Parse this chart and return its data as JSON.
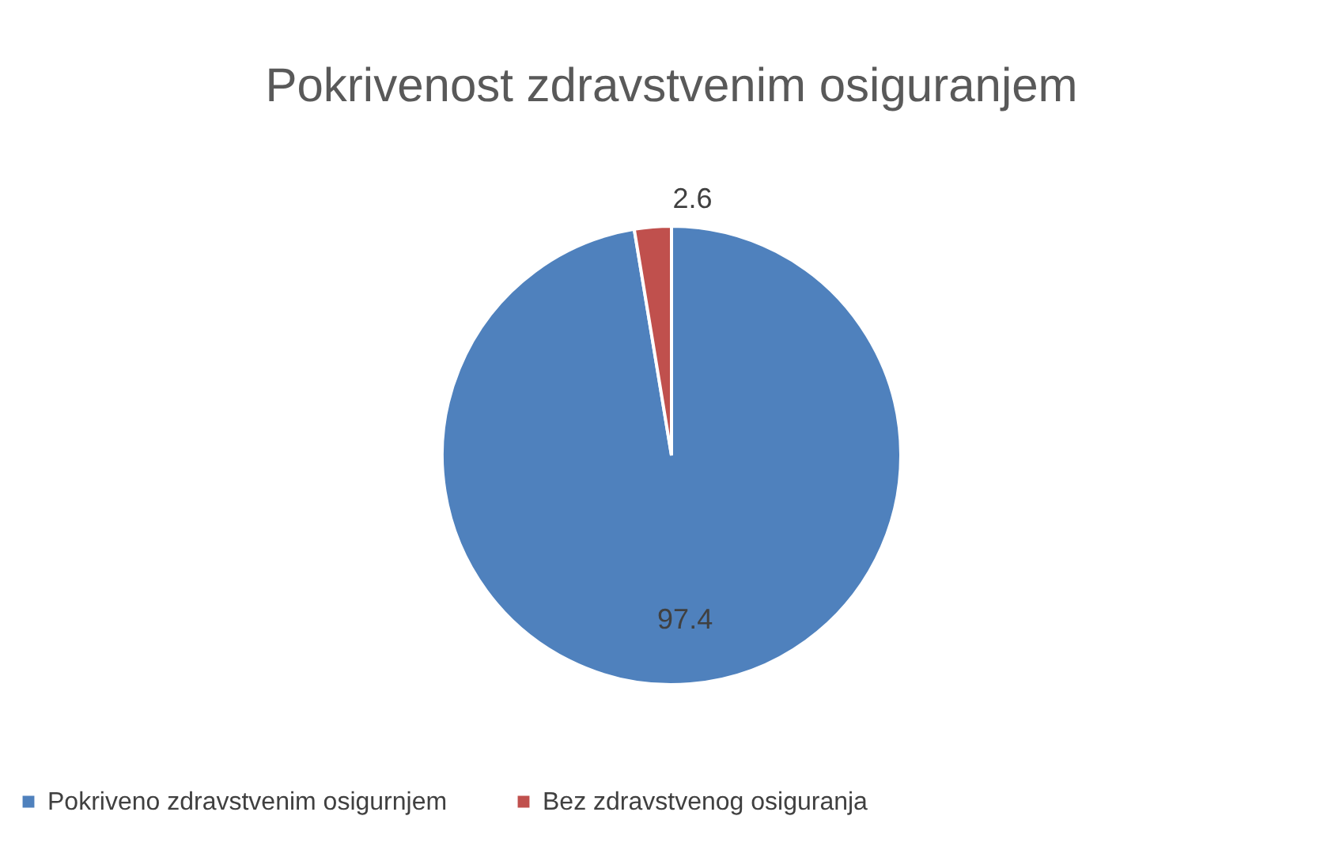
{
  "chart_data": {
    "type": "pie",
    "title": "Pokrivenost zdravstvenim osiguranjem",
    "categories": [
      "Pokriveno zdravstvenim osigurnjem",
      "Bez zdravstvenog osiguranja"
    ],
    "values": [
      97.4,
      2.6
    ],
    "colors": [
      "#4f81bd",
      "#c0504d"
    ],
    "data_labels": true,
    "legend": "bottom"
  }
}
